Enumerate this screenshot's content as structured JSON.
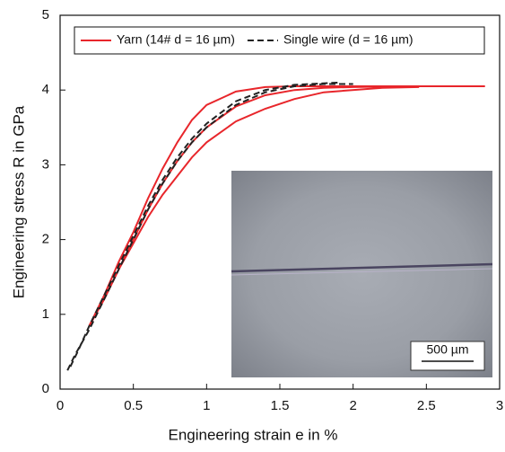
{
  "chart_data": {
    "type": "line",
    "xlabel": "Engineering strain e in %",
    "ylabel": "Engineering stress R in GPa",
    "xlim": [
      0,
      3
    ],
    "ylim": [
      0,
      5
    ],
    "xticks": [
      0,
      0.5,
      1,
      1.5,
      2,
      2.5,
      3
    ],
    "yticks": [
      0,
      1,
      2,
      3,
      4,
      5
    ],
    "annotation": "500 µm",
    "series": [
      {
        "name": "Yarn (14# d = 16 µm)",
        "color": "#e8262b",
        "line_style": "solid",
        "curves": [
          {
            "x": [
              0.2,
              0.3,
              0.4,
              0.5,
              0.6,
              0.7,
              0.8,
              0.9,
              1.0,
              1.2,
              1.4,
              1.6,
              1.8,
              2.0,
              2.4,
              2.9
            ],
            "values": [
              0.85,
              1.2,
              1.6,
              2.0,
              2.4,
              2.75,
              3.05,
              3.3,
              3.5,
              3.78,
              3.93,
              4.0,
              4.03,
              4.04,
              4.05,
              4.05
            ]
          },
          {
            "x": [
              0.2,
              0.3,
              0.4,
              0.5,
              0.6,
              0.7,
              0.8,
              0.9,
              1.0,
              1.2,
              1.4,
              1.6,
              2.0,
              2.45
            ],
            "values": [
              0.85,
              1.25,
              1.7,
              2.1,
              2.55,
              2.95,
              3.3,
              3.6,
              3.8,
              3.98,
              4.04,
              4.05,
              4.05,
              4.05
            ]
          },
          {
            "x": [
              0.2,
              0.3,
              0.4,
              0.5,
              0.6,
              0.7,
              0.8,
              0.9,
              1.0,
              1.2,
              1.4,
              1.6,
              1.8,
              2.2,
              2.45
            ],
            "values": [
              0.85,
              1.2,
              1.6,
              1.95,
              2.3,
              2.6,
              2.85,
              3.1,
              3.3,
              3.58,
              3.75,
              3.88,
              3.97,
              4.03,
              4.04
            ]
          }
        ]
      },
      {
        "name": "Single wire (d = 16 µm)",
        "color": "#222222",
        "line_style": "dashed",
        "curves": [
          {
            "x": [
              0.05,
              0.1,
              0.2,
              0.3,
              0.4,
              0.5,
              0.6,
              0.7,
              0.8,
              0.9,
              1.0,
              1.2,
              1.4,
              1.6,
              1.8,
              2.0
            ],
            "values": [
              0.25,
              0.45,
              0.8,
              1.2,
              1.6,
              2.0,
              2.4,
              2.75,
              3.05,
              3.3,
              3.5,
              3.8,
              3.97,
              4.05,
              4.08,
              4.08
            ]
          },
          {
            "x": [
              0.07,
              0.12,
              0.2,
              0.3,
              0.4,
              0.5,
              0.6,
              0.7,
              0.8,
              0.9,
              1.0,
              1.2,
              1.4,
              1.6,
              1.9
            ],
            "values": [
              0.3,
              0.5,
              0.85,
              1.25,
              1.65,
              2.05,
              2.45,
              2.8,
              3.1,
              3.35,
              3.55,
              3.85,
              4.0,
              4.07,
              4.1
            ]
          }
        ]
      }
    ]
  }
}
